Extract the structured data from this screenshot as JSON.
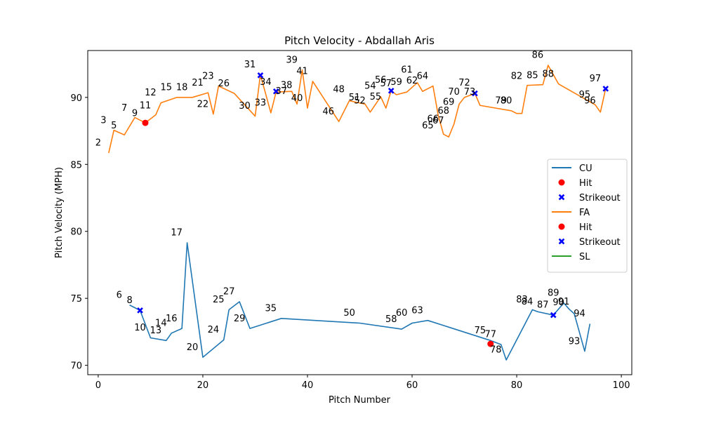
{
  "chart_data": {
    "type": "line",
    "title": "Pitch Velocity - Abdallah Aris",
    "xlabel": "Pitch Number",
    "ylabel": "Pitch Velocity (MPH)",
    "xlim": [
      -2,
      102
    ],
    "ylim": [
      69.3,
      93.5
    ],
    "xticks": [
      0,
      20,
      40,
      60,
      80,
      100
    ],
    "yticks": [
      70,
      75,
      80,
      85,
      90
    ],
    "grid": false,
    "legend_position": "center right",
    "colors": {
      "CU": "#1f77b4",
      "FA": "#ff7f0e",
      "SL": "#2ca02c",
      "hit": "#ff0000",
      "strikeout": "#0000ff"
    },
    "legend": [
      {
        "label": "CU",
        "kind": "line",
        "color": "#1f77b4"
      },
      {
        "label": "Hit",
        "kind": "dot",
        "color": "#ff0000"
      },
      {
        "label": "Strikeout",
        "kind": "x",
        "color": "#0000ff"
      },
      {
        "label": "FA",
        "kind": "line",
        "color": "#ff7f0e"
      },
      {
        "label": "Hit",
        "kind": "dot",
        "color": "#ff0000"
      },
      {
        "label": "Strikeout",
        "kind": "x",
        "color": "#0000ff"
      },
      {
        "label": "SL",
        "kind": "line",
        "color": "#2ca02c"
      }
    ],
    "series": [
      {
        "name": "CU",
        "color": "#1f77b4",
        "points": [
          {
            "x": 6,
            "y": 74.5
          },
          {
            "x": 8,
            "y": 74.1
          },
          {
            "x": 10,
            "y": 72.05
          },
          {
            "x": 13,
            "y": 71.85
          },
          {
            "x": 14,
            "y": 72.4
          },
          {
            "x": 16,
            "y": 72.75
          },
          {
            "x": 17,
            "y": 79.15
          },
          {
            "x": 20,
            "y": 70.6
          },
          {
            "x": 24,
            "y": 71.9
          },
          {
            "x": 25,
            "y": 74.15
          },
          {
            "x": 27,
            "y": 74.75
          },
          {
            "x": 29,
            "y": 72.75
          },
          {
            "x": 35,
            "y": 73.5
          },
          {
            "x": 50,
            "y": 73.15
          },
          {
            "x": 58,
            "y": 72.7
          },
          {
            "x": 60,
            "y": 73.15
          },
          {
            "x": 63,
            "y": 73.35
          },
          {
            "x": 75,
            "y": 71.85
          },
          {
            "x": 77,
            "y": 71.55
          },
          {
            "x": 78,
            "y": 70.4
          },
          {
            "x": 83,
            "y": 74.15
          },
          {
            "x": 84,
            "y": 74.0
          },
          {
            "x": 87,
            "y": 73.75
          },
          {
            "x": 89,
            "y": 74.65
          },
          {
            "x": 90,
            "y": 74.2
          },
          {
            "x": 91,
            "y": 73.85
          },
          {
            "x": 93,
            "y": 71.05
          },
          {
            "x": 94,
            "y": 73.1
          }
        ],
        "hits": [
          {
            "x": 75,
            "y": 71.6
          }
        ],
        "strikeouts": [
          {
            "x": 8,
            "y": 74.1
          },
          {
            "x": 87,
            "y": 73.75
          }
        ]
      },
      {
        "name": "FA",
        "color": "#ff7f0e",
        "points": [
          {
            "x": 2,
            "y": 85.85
          },
          {
            "x": 3,
            "y": 87.55
          },
          {
            "x": 5,
            "y": 87.2
          },
          {
            "x": 7,
            "y": 88.5
          },
          {
            "x": 9,
            "y": 88.1
          },
          {
            "x": 11,
            "y": 88.7
          },
          {
            "x": 12,
            "y": 89.6
          },
          {
            "x": 15,
            "y": 90.0
          },
          {
            "x": 18,
            "y": 90.0
          },
          {
            "x": 21,
            "y": 90.35
          },
          {
            "x": 22,
            "y": 88.75
          },
          {
            "x": 23,
            "y": 90.85
          },
          {
            "x": 26,
            "y": 90.3
          },
          {
            "x": 30,
            "y": 88.6
          },
          {
            "x": 31,
            "y": 91.7
          },
          {
            "x": 33,
            "y": 88.85
          },
          {
            "x": 34,
            "y": 90.4
          },
          {
            "x": 37,
            "y": 90.45
          },
          {
            "x": 38,
            "y": 89.5
          },
          {
            "x": 39,
            "y": 92.05
          },
          {
            "x": 40,
            "y": 89.2
          },
          {
            "x": 41,
            "y": 91.2
          },
          {
            "x": 46,
            "y": 88.2
          },
          {
            "x": 48,
            "y": 89.75
          },
          {
            "x": 51,
            "y": 89.5
          },
          {
            "x": 52,
            "y": 88.9
          },
          {
            "x": 54,
            "y": 90.05
          },
          {
            "x": 55,
            "y": 89.2
          },
          {
            "x": 56,
            "y": 90.5
          },
          {
            "x": 57,
            "y": 90.2
          },
          {
            "x": 59,
            "y": 90.4
          },
          {
            "x": 61,
            "y": 91.1
          },
          {
            "x": 62,
            "y": 90.45
          },
          {
            "x": 64,
            "y": 90.85
          },
          {
            "x": 65,
            "y": 88.65
          },
          {
            "x": 66,
            "y": 87.25
          },
          {
            "x": 67,
            "y": 87.05
          },
          {
            "x": 68,
            "y": 88.0
          },
          {
            "x": 69,
            "y": 89.5
          },
          {
            "x": 70,
            "y": 90.0
          },
          {
            "x": 72,
            "y": 90.3
          },
          {
            "x": 73,
            "y": 89.4
          },
          {
            "x": 79,
            "y": 89.0
          },
          {
            "x": 80,
            "y": 88.8
          },
          {
            "x": 81,
            "y": 88.8
          },
          {
            "x": 82,
            "y": 90.9
          },
          {
            "x": 85,
            "y": 90.95
          },
          {
            "x": 86,
            "y": 92.4
          },
          {
            "x": 88,
            "y": 91.0
          },
          {
            "x": 95,
            "y": 89.45
          },
          {
            "x": 96,
            "y": 88.9
          },
          {
            "x": 97,
            "y": 90.65
          }
        ],
        "hits": [
          {
            "x": 9,
            "y": 88.1
          }
        ],
        "strikeouts": [
          {
            "x": 31,
            "y": 91.65
          },
          {
            "x": 34,
            "y": 90.45
          },
          {
            "x": 56,
            "y": 90.5
          },
          {
            "x": 72,
            "y": 90.3
          },
          {
            "x": 97,
            "y": 90.65
          }
        ]
      },
      {
        "name": "SL",
        "color": "#2ca02c",
        "points": [],
        "hits": [],
        "strikeouts": []
      }
    ],
    "annotations": [
      {
        "text": "2",
        "x": 0,
        "y": 86.6
      },
      {
        "text": "3",
        "x": 1,
        "y": 88.3
      },
      {
        "text": "5",
        "x": 3,
        "y": 87.9
      },
      {
        "text": "7",
        "x": 5,
        "y": 89.2
      },
      {
        "text": "9",
        "x": 7,
        "y": 88.8
      },
      {
        "text": "11",
        "x": 9,
        "y": 89.4
      },
      {
        "text": "12",
        "x": 10,
        "y": 90.35
      },
      {
        "text": "15",
        "x": 13,
        "y": 90.75
      },
      {
        "text": "18",
        "x": 16,
        "y": 90.75
      },
      {
        "text": "21",
        "x": 19,
        "y": 91.1
      },
      {
        "text": "22",
        "x": 20,
        "y": 89.5
      },
      {
        "text": "23",
        "x": 21,
        "y": 91.6
      },
      {
        "text": "26",
        "x": 24,
        "y": 91.05
      },
      {
        "text": "30",
        "x": 28,
        "y": 89.35
      },
      {
        "text": "31",
        "x": 29,
        "y": 92.45
      },
      {
        "text": "33",
        "x": 31,
        "y": 89.6
      },
      {
        "text": "34",
        "x": 32,
        "y": 91.15
      },
      {
        "text": "37",
        "x": 35,
        "y": 90.45
      },
      {
        "text": "38",
        "x": 36,
        "y": 90.9
      },
      {
        "text": "39",
        "x": 37,
        "y": 92.8
      },
      {
        "text": "40",
        "x": 38,
        "y": 89.95
      },
      {
        "text": "41",
        "x": 39,
        "y": 91.95
      },
      {
        "text": "46",
        "x": 44,
        "y": 88.95
      },
      {
        "text": "48",
        "x": 46,
        "y": 90.6
      },
      {
        "text": "51",
        "x": 49,
        "y": 90.0
      },
      {
        "text": "52",
        "x": 50,
        "y": 89.75
      },
      {
        "text": "54",
        "x": 52,
        "y": 90.85
      },
      {
        "text": "55",
        "x": 53,
        "y": 90.05
      },
      {
        "text": "56",
        "x": 54,
        "y": 91.3
      },
      {
        "text": "57",
        "x": 55,
        "y": 91.05
      },
      {
        "text": "59",
        "x": 57,
        "y": 91.15
      },
      {
        "text": "61",
        "x": 59,
        "y": 92.05
      },
      {
        "text": "62",
        "x": 60,
        "y": 91.25
      },
      {
        "text": "64",
        "x": 62,
        "y": 91.6
      },
      {
        "text": "65",
        "x": 63,
        "y": 87.9
      },
      {
        "text": "66",
        "x": 64,
        "y": 88.4
      },
      {
        "text": "67",
        "x": 65,
        "y": 88.25
      },
      {
        "text": "68",
        "x": 66,
        "y": 89.0
      },
      {
        "text": "69",
        "x": 67,
        "y": 89.65
      },
      {
        "text": "70",
        "x": 68,
        "y": 90.4
      },
      {
        "text": "72",
        "x": 70,
        "y": 91.1
      },
      {
        "text": "73",
        "x": 71,
        "y": 90.4
      },
      {
        "text": "79",
        "x": 77,
        "y": 89.75
      },
      {
        "text": "80",
        "x": 78,
        "y": 89.75
      },
      {
        "text": "82",
        "x": 80,
        "y": 91.6
      },
      {
        "text": "85",
        "x": 83,
        "y": 91.65
      },
      {
        "text": "86",
        "x": 84,
        "y": 93.15
      },
      {
        "text": "88",
        "x": 86,
        "y": 91.75
      },
      {
        "text": "95",
        "x": 93,
        "y": 90.2
      },
      {
        "text": "96",
        "x": 94,
        "y": 89.75
      },
      {
        "text": "97",
        "x": 95,
        "y": 91.4
      },
      {
        "text": "6",
        "x": 4,
        "y": 75.25
      },
      {
        "text": "8",
        "x": 6,
        "y": 74.85
      },
      {
        "text": "10",
        "x": 8,
        "y": 72.8
      },
      {
        "text": "13",
        "x": 11,
        "y": 72.6
      },
      {
        "text": "14",
        "x": 12,
        "y": 73.15
      },
      {
        "text": "16",
        "x": 14,
        "y": 73.5
      },
      {
        "text": "17",
        "x": 15,
        "y": 79.9
      },
      {
        "text": "20",
        "x": 18,
        "y": 71.35
      },
      {
        "text": "24",
        "x": 22,
        "y": 72.65
      },
      {
        "text": "25",
        "x": 23,
        "y": 74.9
      },
      {
        "text": "27",
        "x": 25,
        "y": 75.5
      },
      {
        "text": "29",
        "x": 27,
        "y": 73.5
      },
      {
        "text": "35",
        "x": 33,
        "y": 74.25
      },
      {
        "text": "50",
        "x": 48,
        "y": 73.9
      },
      {
        "text": "58",
        "x": 56,
        "y": 73.45
      },
      {
        "text": "60",
        "x": 58,
        "y": 73.9
      },
      {
        "text": "63",
        "x": 61,
        "y": 74.1
      },
      {
        "text": "75",
        "x": 73,
        "y": 72.6
      },
      {
        "text": "77",
        "x": 75,
        "y": 72.3
      },
      {
        "text": "78",
        "x": 76,
        "y": 71.15
      },
      {
        "text": "83",
        "x": 81,
        "y": 74.9
      },
      {
        "text": "84",
        "x": 82,
        "y": 74.75
      },
      {
        "text": "87",
        "x": 85,
        "y": 74.5
      },
      {
        "text": "89",
        "x": 87,
        "y": 75.4
      },
      {
        "text": "90",
        "x": 88,
        "y": 74.7
      },
      {
        "text": "91",
        "x": 89,
        "y": 74.75
      },
      {
        "text": "93",
        "x": 91,
        "y": 71.8
      },
      {
        "text": "94",
        "x": 92,
        "y": 73.85
      }
    ]
  }
}
